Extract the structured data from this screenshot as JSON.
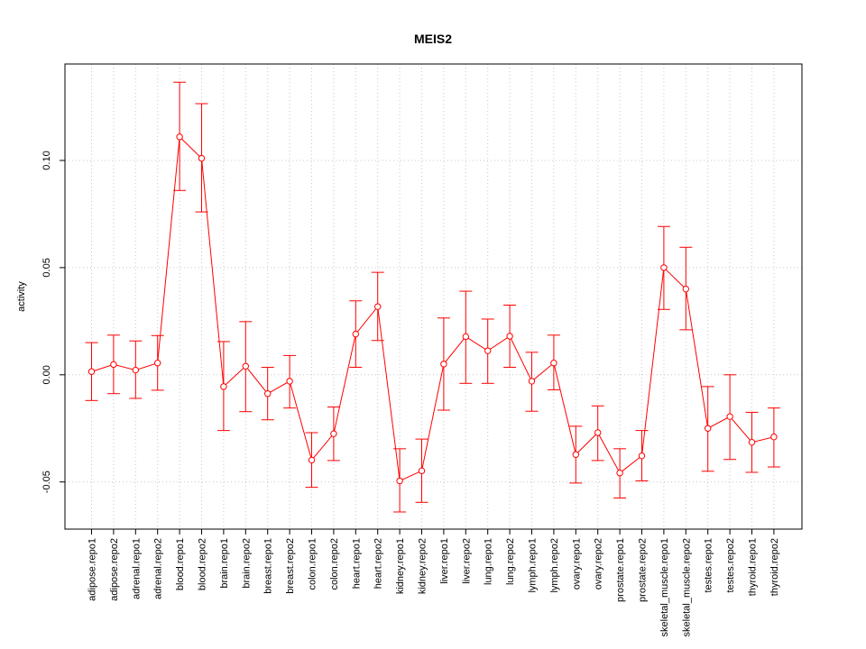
{
  "chart_data": {
    "type": "line",
    "title": "MEIS2",
    "xlabel": "",
    "ylabel": "activity",
    "ylim": [
      -0.072,
      0.145
    ],
    "y_ticks": [
      -0.05,
      0.0,
      0.05,
      0.1
    ],
    "y_tick_labels": [
      "-0.05",
      "0.00",
      "0.05",
      "0.10"
    ],
    "grid": true,
    "series_color": "#ff0000",
    "grid_color": "#c8c8c8",
    "categories": [
      "adipose.repo1",
      "adipose.repo2",
      "adrenal.repo1",
      "adrenal.repo2",
      "blood.repo1",
      "blood.repo2",
      "brain.repo1",
      "brain.repo2",
      "breast.repo1",
      "breast.repo2",
      "colon.repo1",
      "colon.repo2",
      "heart.repo1",
      "heart.repo2",
      "kidney.repo1",
      "kidney.repo2",
      "liver.repo1",
      "liver.repo2",
      "lung.repo1",
      "lung.repo2",
      "lymph.repo1",
      "lymph.repo2",
      "ovary.repo1",
      "ovary.repo2",
      "prostate.repo1",
      "prostate.repo2",
      "skeletal_muscle.repo1",
      "skeletal_muscle.repo2",
      "testes.repo1",
      "testes.repo2",
      "thyroid.repo1",
      "thyroid.repo2"
    ],
    "values": [
      0.0015,
      0.0048,
      0.0022,
      0.0055,
      0.111,
      0.101,
      -0.0055,
      0.004,
      -0.0088,
      -0.003,
      -0.0398,
      -0.0275,
      0.019,
      0.0318,
      -0.0495,
      -0.0448,
      0.005,
      0.0178,
      0.0112,
      0.018,
      -0.003,
      0.0055,
      -0.0372,
      -0.027,
      -0.0458,
      -0.0378,
      0.05,
      0.04,
      -0.025,
      -0.0195,
      -0.0315,
      -0.029
    ],
    "error_low": [
      -0.012,
      -0.0088,
      -0.011,
      -0.0072,
      0.086,
      0.076,
      -0.026,
      -0.0172,
      -0.021,
      -0.0155,
      -0.0525,
      -0.04,
      0.0035,
      0.016,
      -0.064,
      -0.0595,
      -0.0165,
      -0.004,
      -0.004,
      0.0035,
      -0.017,
      -0.007,
      -0.0505,
      -0.04,
      -0.0575,
      -0.0495,
      0.0305,
      0.021,
      -0.045,
      -0.0395,
      -0.0455,
      -0.043
    ],
    "error_high": [
      0.015,
      0.0185,
      0.0158,
      0.0183,
      0.1365,
      0.1265,
      0.0155,
      0.0248,
      0.0035,
      0.009,
      -0.027,
      -0.015,
      0.0345,
      0.0478,
      -0.0345,
      -0.03,
      0.0265,
      0.039,
      0.026,
      0.0325,
      0.0105,
      0.0185,
      -0.024,
      -0.0145,
      -0.0345,
      -0.026,
      0.0692,
      0.0595,
      -0.0055,
      0.0,
      -0.0175,
      -0.0155
    ]
  }
}
